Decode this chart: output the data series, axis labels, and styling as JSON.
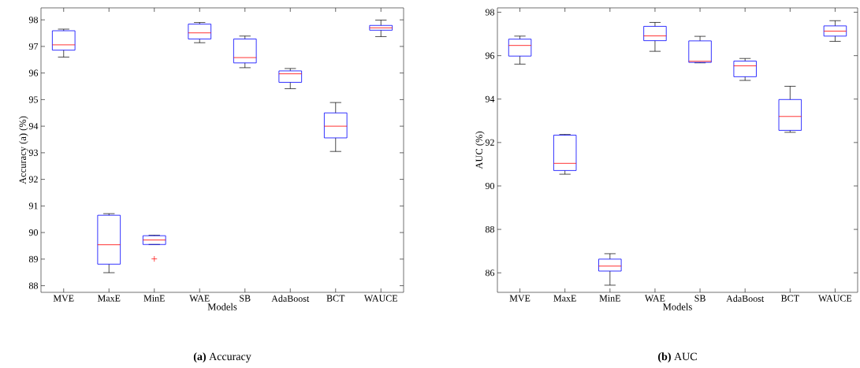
{
  "chart_data": [
    {
      "type": "box",
      "xlabel": "Models",
      "ylabel": "Accuracy (a) (%)",
      "categories": [
        "MVE",
        "MaxE",
        "MinE",
        "WAE",
        "SB",
        "AdaBoost",
        "BCT",
        "WAUCE"
      ],
      "ylim": [
        87.75,
        98.45
      ],
      "yticks": [
        88,
        89,
        90,
        91,
        92,
        93,
        94,
        95,
        96,
        97,
        98
      ],
      "annotations": [
        "**(a)**  Accuracy"
      ],
      "series": [
        {
          "color": "#0000ff",
          "boxes": [
            {
              "low": 96.6,
              "q1": 96.86,
              "median": 97.06,
              "q3": 97.59,
              "high": 97.65
            },
            {
              "low": 88.49,
              "q1": 88.81,
              "median": 89.54,
              "q3": 90.65,
              "high": 90.71
            },
            {
              "low": 89.55,
              "q1": 89.55,
              "median": 89.72,
              "q3": 89.88,
              "high": 89.9,
              "outliers": [
                89.01
              ]
            },
            {
              "low": 97.14,
              "q1": 97.28,
              "median": 97.51,
              "q3": 97.84,
              "high": 97.9
            },
            {
              "low": 96.2,
              "q1": 96.38,
              "median": 96.58,
              "q3": 97.28,
              "high": 97.39
            },
            {
              "low": 95.41,
              "q1": 95.65,
              "median": 95.97,
              "q3": 96.08,
              "high": 96.17
            },
            {
              "low": 93.05,
              "q1": 93.56,
              "median": 94.0,
              "q3": 94.5,
              "high": 94.89
            },
            {
              "low": 97.37,
              "q1": 97.61,
              "median": 97.7,
              "q3": 97.79,
              "high": 97.99
            }
          ]
        }
      ]
    },
    {
      "type": "box",
      "xlabel": "Models",
      "ylabel": "AUC (%)",
      "categories": [
        "MVE",
        "MaxE",
        "MinE",
        "WAE",
        "SB",
        "AdaBoost",
        "BCT",
        "WAUCE"
      ],
      "ylim": [
        85.1,
        98.2
      ],
      "yticks": [
        86,
        88,
        90,
        92,
        94,
        96,
        98
      ],
      "annotations": [
        "**(b)**  AUC"
      ],
      "series": [
        {
          "color": "#0000ff",
          "boxes": [
            {
              "low": 95.61,
              "q1": 95.98,
              "median": 96.47,
              "q3": 96.76,
              "high": 96.9
            },
            {
              "low": 90.54,
              "q1": 90.71,
              "median": 91.04,
              "q3": 92.34,
              "high": 92.37
            },
            {
              "low": 85.43,
              "q1": 86.08,
              "median": 86.31,
              "q3": 86.63,
              "high": 86.88
            },
            {
              "low": 96.2,
              "q1": 96.69,
              "median": 96.91,
              "q3": 97.35,
              "high": 97.53
            },
            {
              "low": 95.67,
              "q1": 95.69,
              "median": 95.74,
              "q3": 96.68,
              "high": 96.89
            },
            {
              "low": 94.86,
              "q1": 95.03,
              "median": 95.53,
              "q3": 95.75,
              "high": 95.87
            },
            {
              "low": 92.47,
              "q1": 92.56,
              "median": 93.2,
              "q3": 93.98,
              "high": 94.59
            },
            {
              "low": 96.66,
              "q1": 96.9,
              "median": 97.13,
              "q3": 97.37,
              "high": 97.61
            }
          ]
        }
      ]
    }
  ]
}
